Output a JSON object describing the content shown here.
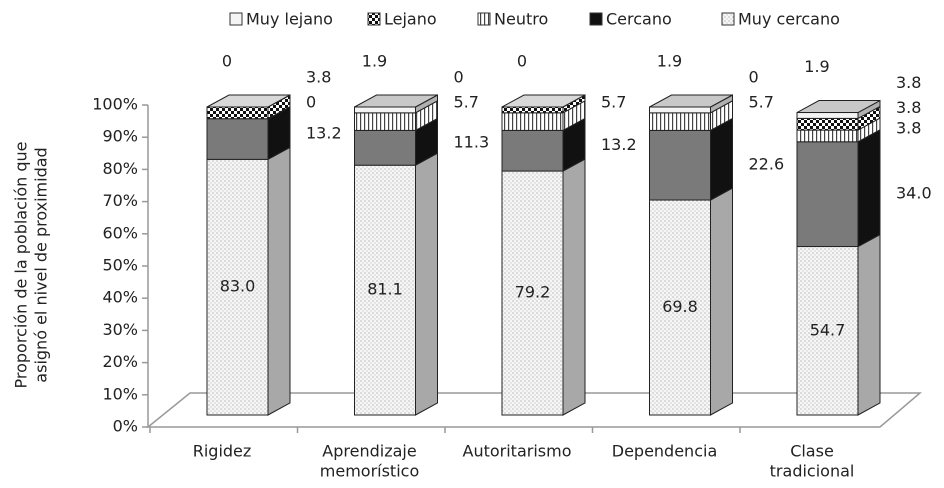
{
  "chart_data": {
    "type": "bar3d_stacked",
    "y_axis_label": [
      "Proporción de la población que",
      "asignó el nivel de proximidad"
    ],
    "categories": [
      [
        "Rigidez"
      ],
      [
        "Aprendizaje",
        "memorístico"
      ],
      [
        "Autoritarismo"
      ],
      [
        "Dependencia"
      ],
      [
        "Clase",
        "tradicional"
      ]
    ],
    "series": [
      {
        "name": "Muy lejano",
        "color": "#f4f4f4",
        "pattern": "solid",
        "values": [
          0,
          1.9,
          0,
          1.9,
          1.9
        ],
        "value_labels": [
          "0",
          "1.9",
          "0",
          "1.9",
          "1.9"
        ]
      },
      {
        "name": "Lejano",
        "color": "#7a7a7a",
        "pattern": "checker",
        "values": [
          3.8,
          0,
          1.9,
          0,
          3.8
        ],
        "value_labels": [
          "3.8",
          "0",
          null,
          "0",
          "3.8"
        ]
      },
      {
        "name": "Neutro",
        "color": "#ffffff",
        "pattern": "stripes",
        "values": [
          0,
          5.7,
          5.7,
          5.7,
          3.8
        ],
        "value_labels": [
          "0",
          "5.7",
          "5.7",
          "5.7",
          "3.8"
        ]
      },
      {
        "name": "Cercano",
        "color": "#7a7a7a",
        "pattern": "solid",
        "values": [
          13.2,
          11.3,
          13.2,
          22.6,
          34.0
        ],
        "value_labels": [
          "13.2",
          "11.3",
          "13.2",
          "22.6",
          "34.0"
        ]
      },
      {
        "name": "Muy cercano",
        "color": "#f2f2f2",
        "pattern": "dots",
        "values": [
          83.0,
          81.1,
          79.2,
          69.8,
          54.7
        ],
        "value_labels": [
          "83.0",
          "81.1",
          "79.2",
          "69.8",
          "54.7"
        ]
      }
    ],
    "annotations": [
      "3.8"
    ],
    "ylim": [
      0,
      100
    ],
    "yticks": [
      {
        "value": 0,
        "label": "0%"
      },
      {
        "value": 10,
        "label": "10%"
      },
      {
        "value": 20,
        "label": "20%"
      },
      {
        "value": 30,
        "label": "30%"
      },
      {
        "value": 40,
        "label": "40%"
      },
      {
        "value": 50,
        "label": "50%"
      },
      {
        "value": 60,
        "label": "60%"
      },
      {
        "value": 70,
        "label": "70%"
      },
      {
        "value": 80,
        "label": "80%"
      },
      {
        "value": 90,
        "label": "90%"
      },
      {
        "value": 100,
        "label": "100%"
      }
    ],
    "legend": "top"
  }
}
